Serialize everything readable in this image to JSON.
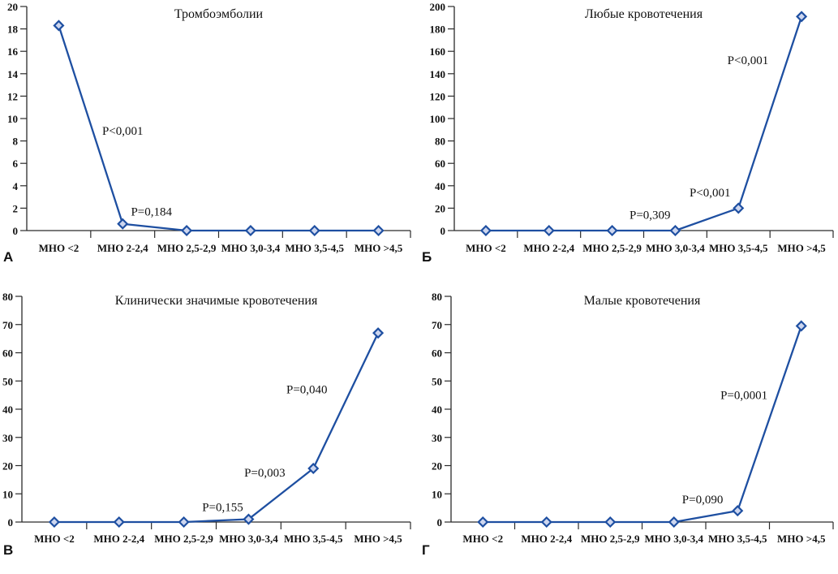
{
  "page": {
    "background": "#ffffff"
  },
  "style": {
    "line_color": "#1e4fa1",
    "marker_fill": "#cdd6ef",
    "marker_stroke": "#1e4fa1",
    "axis_color": "#2b2b2b",
    "text_color": "#111111"
  },
  "chart_data": [
    {
      "type": "line",
      "panel_label": "А",
      "title": "Тромбоэмболии",
      "categories": [
        "МНО <2",
        "МНО 2-2,4",
        "МНО 2,5-2,9",
        "МНО 3,0-3,4",
        "МНО 3,5-4,5",
        "МНО >4,5"
      ],
      "values": [
        18.3,
        0.6,
        0,
        0,
        0,
        0
      ],
      "ylim": [
        0,
        20
      ],
      "ytick_step": 2,
      "grid": false,
      "legend": "none",
      "annotations": [
        {
          "text": "P<0,001",
          "x": 1.0,
          "y": 8.9
        },
        {
          "text": "P=0,184",
          "x": 1.45,
          "y": 1.7
        }
      ]
    },
    {
      "type": "line",
      "panel_label": "Б",
      "title": "Любые кровотечения",
      "categories": [
        "МНО <2",
        "МНО 2-2,4",
        "МНО 2,5-2,9",
        "МНО 3,0-3,4",
        "МНО 3,5-4,5",
        "МНО >4,5"
      ],
      "values": [
        0,
        0,
        0,
        0,
        20,
        191
      ],
      "ylim": [
        0,
        200
      ],
      "ytick_step": 20,
      "grid": false,
      "legend": "none",
      "annotations": [
        {
          "text": "P=0,309",
          "x": 2.6,
          "y": 14
        },
        {
          "text": "P<0,001",
          "x": 3.55,
          "y": 34
        },
        {
          "text": "P<0,001",
          "x": 4.15,
          "y": 152
        }
      ]
    },
    {
      "type": "line",
      "panel_label": "В",
      "title": "Клинически значимые кровотечения",
      "categories": [
        "МНО <2",
        "МНО 2-2,4",
        "МНО 2,5-2,9",
        "МНО 3,0-3,4",
        "МНО 3,5-4,5",
        "МНО >4,5"
      ],
      "values": [
        0,
        0,
        0,
        1,
        19,
        67
      ],
      "ylim": [
        0,
        80
      ],
      "ytick_step": 10,
      "grid": false,
      "legend": "none",
      "annotations": [
        {
          "text": "P=0,155",
          "x": 2.6,
          "y": 5.3
        },
        {
          "text": "P=0,003",
          "x": 3.25,
          "y": 17.5
        },
        {
          "text": "P=0,040",
          "x": 3.9,
          "y": 47
        }
      ]
    },
    {
      "type": "line",
      "panel_label": "Г",
      "title": "Малые кровотечения",
      "categories": [
        "МНО <2",
        "МНО 2-2,4",
        "МНО 2,5-2,9",
        "МНО 3,0-3,4",
        "МНО 3,5-4,5",
        "МНО >4,5"
      ],
      "values": [
        0,
        0,
        0,
        0,
        4,
        69.5
      ],
      "ylim": [
        0,
        80
      ],
      "ytick_step": 10,
      "grid": false,
      "legend": "none",
      "annotations": [
        {
          "text": "P=0,090",
          "x": 3.45,
          "y": 8
        },
        {
          "text": "P=0,0001",
          "x": 4.1,
          "y": 45
        }
      ]
    }
  ]
}
